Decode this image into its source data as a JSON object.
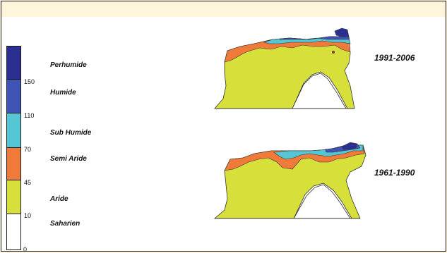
{
  "legend": {
    "zones": [
      {
        "name": "Perhumide",
        "color": "#2b2f8f"
      },
      {
        "name": "Humide",
        "color": "#3f54b4"
      },
      {
        "name": "Sub Humide",
        "color": "#55c6d4"
      },
      {
        "name": "Semi Aride",
        "color": "#f07a3a"
      },
      {
        "name": "Aride",
        "color": "#d7e03a"
      },
      {
        "name": "Saharien",
        "color": "#ffffff"
      }
    ],
    "ticks": [
      "150",
      "110",
      "70",
      "45",
      "10",
      "0"
    ]
  },
  "maps": [
    {
      "period": "1991-2006"
    },
    {
      "period": "1961-1990"
    }
  ]
}
